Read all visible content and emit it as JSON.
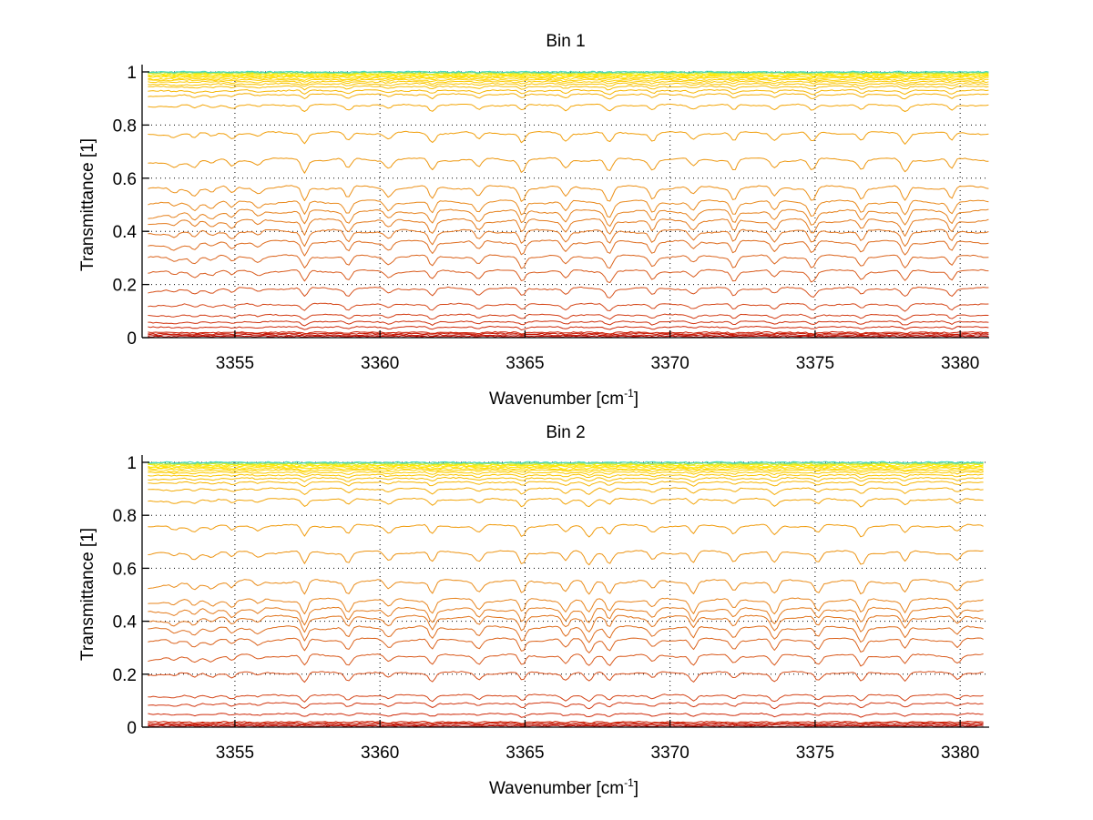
{
  "chart_data": [
    {
      "type": "line",
      "title": "Bin 1",
      "xlabel": "Wavenumber [cm",
      "xlabel_sup": "-1",
      "xlabel_end": "]",
      "ylabel": "Transmittance [1]",
      "xlim": [
        3351.8,
        3381.0
      ],
      "ylim": [
        0,
        1
      ],
      "xdata_range": [
        3352.0,
        3381.0
      ],
      "xticks": [
        3355,
        3360,
        3365,
        3370,
        3375,
        3380
      ],
      "xtick_labels": [
        "3355",
        "3360",
        "3365",
        "3370",
        "3375",
        "3380"
      ],
      "yticks": [
        0,
        0.2,
        0.4,
        0.6,
        0.8,
        1
      ],
      "ytick_labels": [
        "0",
        "0.2",
        "0.4",
        "0.6",
        "0.8",
        "1"
      ],
      "grid": true,
      "absorption_lines": [
        3352.9,
        3353.6,
        3354.2,
        3354.9,
        3355.8,
        3357.4,
        3358.9,
        3360.3,
        3361.8,
        3363.4,
        3364.9,
        3366.4,
        3367.9,
        3369.4,
        3370.8,
        3372.2,
        3373.6,
        3374.9,
        3376.6,
        3378.1,
        3379.7
      ],
      "series_baselines": [
        0.0,
        0.005,
        0.01,
        0.015,
        0.02,
        0.04,
        0.06,
        0.085,
        0.125,
        0.185,
        0.25,
        0.305,
        0.36,
        0.4,
        0.44,
        0.475,
        0.51,
        0.565,
        0.67,
        0.77,
        0.875,
        0.915,
        0.93,
        0.945,
        0.955,
        0.963,
        0.97,
        0.976,
        0.981,
        0.985,
        0.989,
        0.992,
        0.995,
        0.997,
        0.999,
        1.0
      ],
      "colormap": [
        "#b00000",
        "#cc1a00",
        "#d4461a",
        "#dd6a1e",
        "#e8861e",
        "#f2a20a",
        "#f8c000",
        "#ffd800",
        "#ffef00",
        "#3fd6c0"
      ]
    },
    {
      "type": "line",
      "title": "Bin 2",
      "xlabel": "Wavenumber [cm",
      "xlabel_sup": "-1",
      "xlabel_end": "]",
      "ylabel": "Transmittance [1]",
      "xlim": [
        3351.8,
        3381.0
      ],
      "ylim": [
        0,
        1
      ],
      "xdata_range": [
        3352.0,
        3380.8
      ],
      "xticks": [
        3355,
        3360,
        3365,
        3370,
        3375,
        3380
      ],
      "xtick_labels": [
        "3355",
        "3360",
        "3365",
        "3370",
        "3375",
        "3380"
      ],
      "yticks": [
        0,
        0.2,
        0.4,
        0.6,
        0.8,
        1
      ],
      "ytick_labels": [
        "0",
        "0.2",
        "0.4",
        "0.6",
        "0.8",
        "1"
      ],
      "grid": true,
      "absorption_lines": [
        3352.9,
        3353.6,
        3354.2,
        3354.9,
        3355.8,
        3357.4,
        3358.9,
        3360.3,
        3361.8,
        3363.4,
        3364.9,
        3366.4,
        3367.2,
        3367.9,
        3369.4,
        3370.8,
        3372.2,
        3373.6,
        3375.1,
        3376.6,
        3378.1,
        3379.9
      ],
      "series_baselines": [
        0.0,
        0.005,
        0.01,
        0.015,
        0.02,
        0.05,
        0.09,
        0.12,
        0.205,
        0.27,
        0.33,
        0.375,
        0.415,
        0.445,
        0.48,
        0.55,
        0.66,
        0.76,
        0.86,
        0.9,
        0.925,
        0.94,
        0.952,
        0.962,
        0.97,
        0.976,
        0.981,
        0.986,
        0.99,
        0.993,
        0.996,
        0.998,
        1.0
      ],
      "colormap": [
        "#b00000",
        "#cc1a00",
        "#d4461a",
        "#dd6a1e",
        "#e8861e",
        "#f2a20a",
        "#f8c000",
        "#ffd800",
        "#ffef00",
        "#3fd6c0"
      ]
    }
  ]
}
